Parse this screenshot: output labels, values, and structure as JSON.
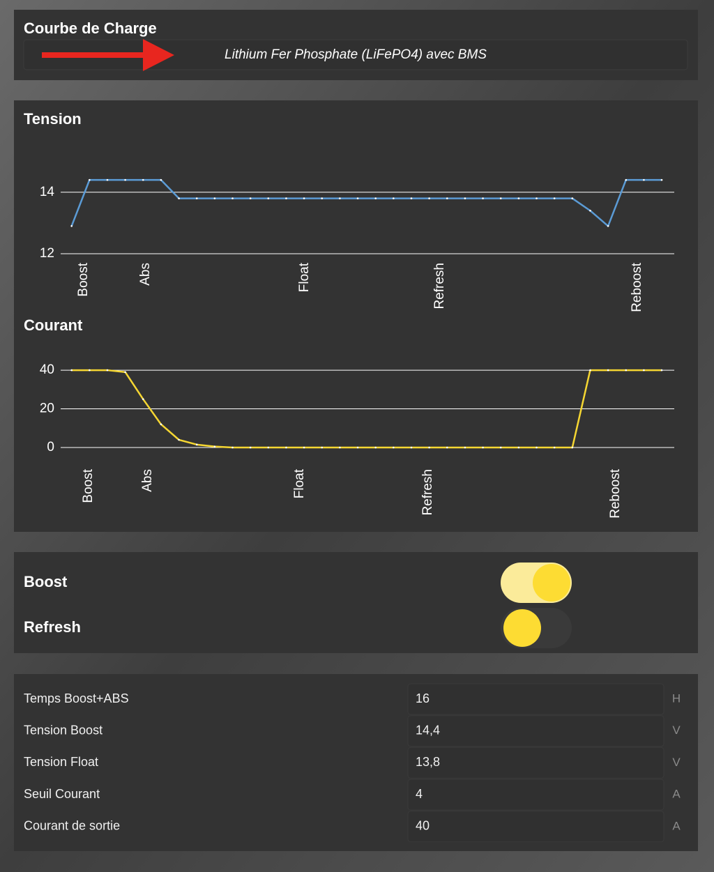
{
  "header": {
    "title": "Courbe de Charge",
    "profile": "Lithium Fer Phosphate (LiFePO4) avec BMS"
  },
  "charts": [
    {
      "type": "line",
      "title": "Tension",
      "x": [
        0,
        1,
        2,
        3,
        4,
        5,
        6,
        7,
        8,
        9,
        10,
        11,
        12,
        13,
        14,
        15,
        16,
        17,
        18,
        19,
        20,
        21,
        22,
        23,
        24,
        25,
        26,
        27,
        28,
        29,
        30,
        31,
        32,
        33
      ],
      "series": [
        {
          "color": "#5b9bd5",
          "values": [
            12.9,
            14.4,
            14.4,
            14.4,
            14.4,
            14.4,
            13.8,
            13.8,
            13.8,
            13.8,
            13.8,
            13.8,
            13.8,
            13.8,
            13.8,
            13.8,
            13.8,
            13.8,
            13.8,
            13.8,
            13.8,
            13.8,
            13.8,
            13.8,
            13.8,
            13.8,
            13.8,
            13.8,
            13.8,
            13.4,
            12.9,
            14.4,
            14.4,
            14.4
          ]
        }
      ],
      "xlim": [
        -0.3,
        33.7
      ],
      "ylim": [
        12,
        15.4
      ],
      "yticks": [
        12,
        14
      ],
      "xticks": [
        {
          "value": 0.67,
          "label": "Boost"
        },
        {
          "value": 4.14,
          "label": "Abs"
        },
        {
          "value": 13.03,
          "label": "Float"
        },
        {
          "value": 20.6,
          "label": "Refresh"
        },
        {
          "value": 31.63,
          "label": "Reboost"
        }
      ],
      "grid": true
    },
    {
      "type": "line",
      "title": "Courant",
      "x": [
        0,
        1,
        2,
        3,
        4,
        5,
        6,
        7,
        8,
        9,
        10,
        11,
        12,
        13,
        14,
        15,
        16,
        17,
        18,
        19,
        20,
        21,
        22,
        23,
        24,
        25,
        26,
        27,
        28,
        29,
        30,
        31,
        32,
        33
      ],
      "series": [
        {
          "color": "#f5d632",
          "values": [
            40,
            40,
            40,
            39,
            25,
            12,
            4,
            1.5,
            0.5,
            0,
            0,
            0,
            0,
            0,
            0,
            0,
            0,
            0,
            0,
            0,
            0,
            0,
            0,
            0,
            0,
            0,
            0,
            0,
            0,
            40,
            40,
            40,
            40,
            40
          ]
        }
      ],
      "xlim": [
        -0.3,
        33.7
      ],
      "ylim": [
        0,
        51.2
      ],
      "yticks": [
        0,
        20,
        40
      ],
      "xticks": [
        {
          "value": 0.95,
          "label": "Boost"
        },
        {
          "value": 4.26,
          "label": "Abs"
        },
        {
          "value": 12.76,
          "label": "Float"
        },
        {
          "value": 19.93,
          "label": "Refresh"
        },
        {
          "value": 30.42,
          "label": "Reboost"
        }
      ],
      "grid": true
    }
  ],
  "toggles": [
    {
      "label": "Boost",
      "on": true
    },
    {
      "label": "Refresh",
      "on": false
    }
  ],
  "settings": [
    {
      "label": "Temps Boost+ABS",
      "value": "16",
      "unit": "H"
    },
    {
      "label": "Tension Boost",
      "value": "14,4",
      "unit": "V"
    },
    {
      "label": "Tension Float",
      "value": "13,8",
      "unit": "V"
    },
    {
      "label": "Seuil Courant",
      "value": "4",
      "unit": "A"
    },
    {
      "label": "Courant de sortie",
      "value": "40",
      "unit": "A"
    }
  ]
}
